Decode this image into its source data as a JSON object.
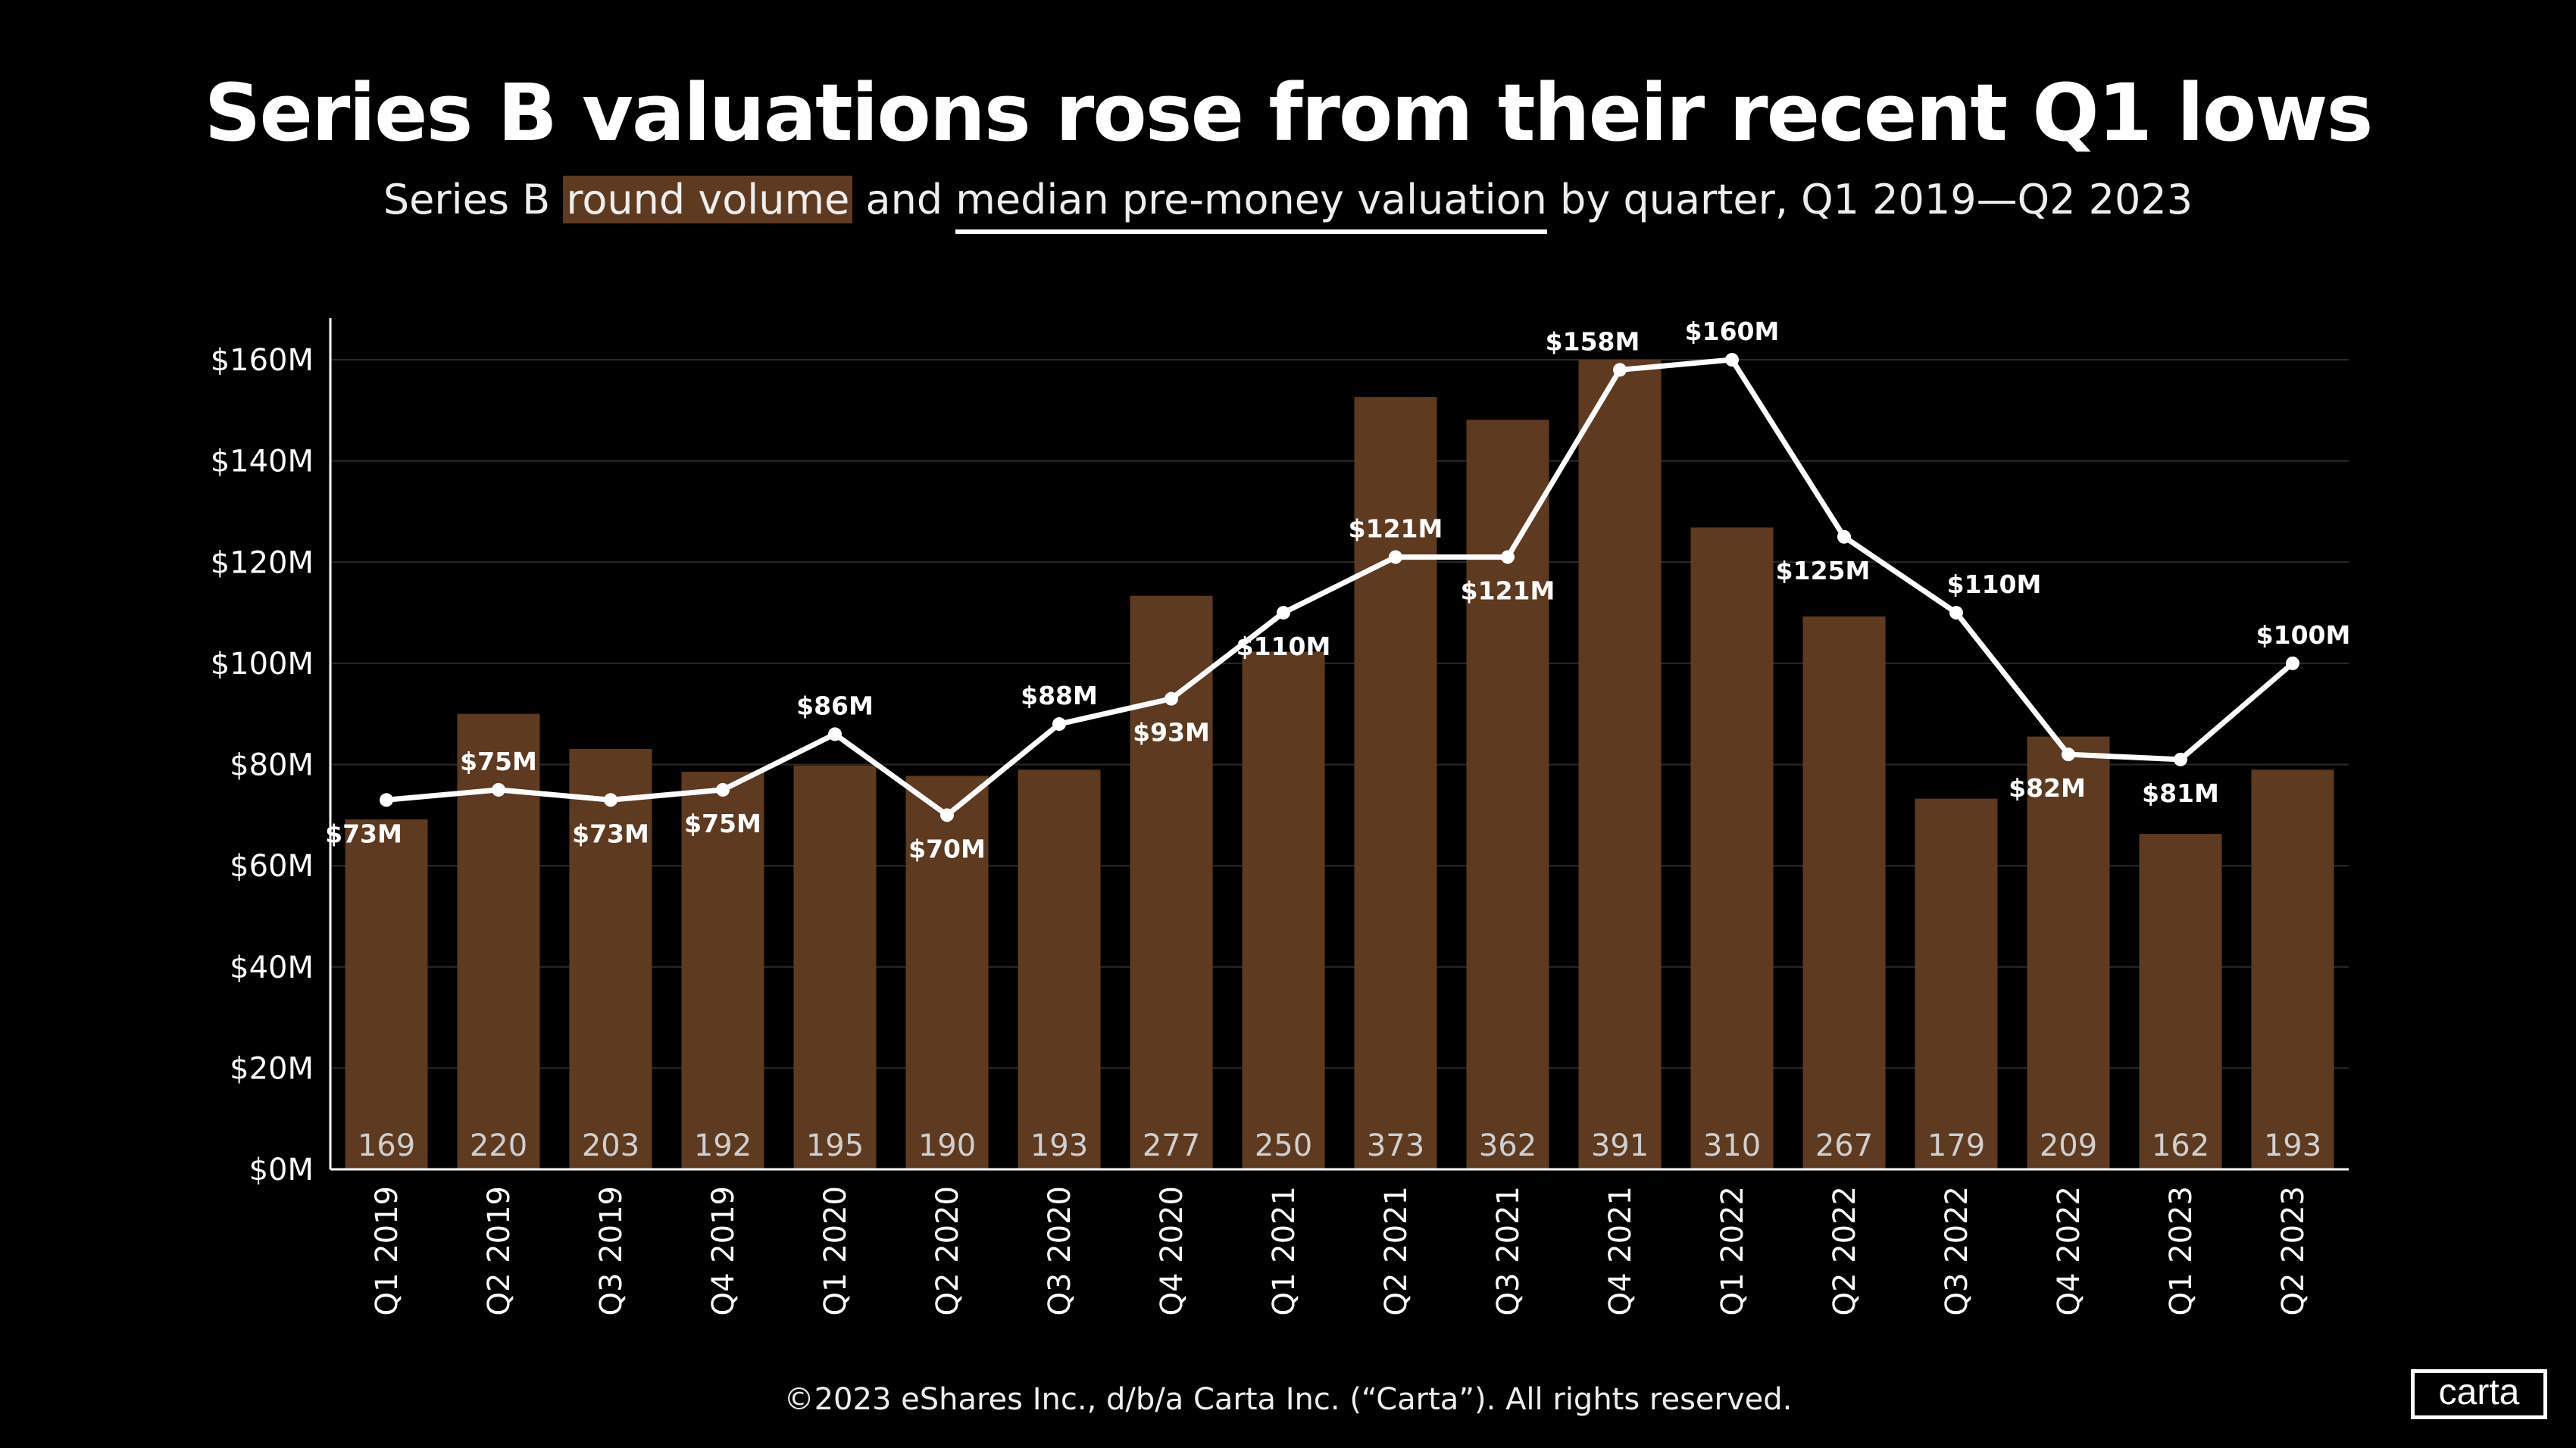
{
  "title": "Series B valuations rose from their recent Q1 lows",
  "subtitle": {
    "pre": "Series B ",
    "highlight_bar": "round volume",
    "mid": " and ",
    "highlight_line": "median pre-money valuation",
    "post": " by quarter, Q1 2019—Q2 2023"
  },
  "footer": "©2023 eShares Inc., d/b/a Carta Inc. (“Carta”). All rights reserved.",
  "logo": "carta",
  "colors": {
    "bar": "#5e3a20",
    "line": "#ffffff",
    "background": "#000000",
    "grid": "#2a2a2a"
  },
  "chart_data": {
    "type": "bar+line",
    "title": "Series B valuations rose from their recent Q1 lows",
    "categories": [
      "Q1 2019",
      "Q2 2019",
      "Q3 2019",
      "Q4 2019",
      "Q1 2020",
      "Q2 2020",
      "Q3 2020",
      "Q4 2020",
      "Q1 2021",
      "Q2 2021",
      "Q3 2021",
      "Q4 2021",
      "Q1 2022",
      "Q2 2022",
      "Q3 2022",
      "Q4 2022",
      "Q1 2023",
      "Q2 2023"
    ],
    "series": [
      {
        "name": "round volume",
        "type": "bar",
        "values": [
          169,
          220,
          203,
          192,
          195,
          190,
          193,
          277,
          250,
          373,
          362,
          391,
          310,
          267,
          179,
          209,
          162,
          193
        ]
      },
      {
        "name": "median pre-money valuation",
        "type": "line",
        "unit": "$M",
        "values": [
          73,
          75,
          73,
          75,
          86,
          70,
          88,
          93,
          110,
          121,
          121,
          158,
          160,
          125,
          110,
          82,
          81,
          100
        ]
      }
    ],
    "y_ticks": [
      "$0M",
      "$20M",
      "$40M",
      "$60M",
      "$80M",
      "$100M",
      "$120M",
      "$140M",
      "$160M"
    ],
    "ylim": [
      0,
      160
    ],
    "grid": true
  }
}
